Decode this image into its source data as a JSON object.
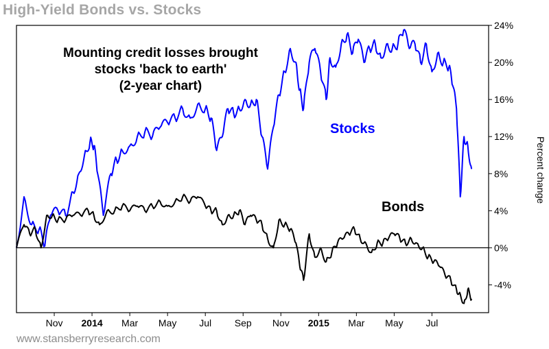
{
  "header": {
    "title": "High-Yield Bonds vs. Stocks"
  },
  "footer": {
    "source": "www.stansberryresearch.com"
  },
  "chart_data": {
    "type": "line",
    "title": "High-Yield Bonds vs. Stocks",
    "annotation_lines": [
      "Mounting credit losses brought",
      "stocks 'back to earth'",
      "(2-year chart)"
    ],
    "ylabel": "Percent change",
    "ylim": [
      -7,
      24
    ],
    "y_ticks": [
      24,
      20,
      16,
      12,
      8,
      4,
      0,
      -4
    ],
    "y_tick_labels": [
      "24%",
      "20%",
      "16%",
      "12%",
      "8%",
      "4%",
      "0%",
      "-4%"
    ],
    "x_ticks": [
      {
        "label": "Nov",
        "month": 2,
        "bold": false
      },
      {
        "label": "2014",
        "month": 4,
        "bold": true
      },
      {
        "label": "Mar",
        "month": 6,
        "bold": false
      },
      {
        "label": "May",
        "month": 8,
        "bold": false
      },
      {
        "label": "Jul",
        "month": 10,
        "bold": false
      },
      {
        "label": "Sep",
        "month": 12,
        "bold": false
      },
      {
        "label": "Nov",
        "month": 14,
        "bold": false
      },
      {
        "label": "2015",
        "month": 16,
        "bold": true
      },
      {
        "label": "Mar",
        "month": 18,
        "bold": false
      },
      {
        "label": "May",
        "month": 20,
        "bold": false
      },
      {
        "label": "Jul",
        "month": 22,
        "bold": false
      }
    ],
    "xlim": [
      0,
      25
    ],
    "grid": false,
    "reference_line": 0,
    "series": [
      {
        "name": "Stocks",
        "color": "#0000ff",
        "x": [
          0,
          0.4,
          0.8,
          1.2,
          1.5,
          1.8,
          2.2,
          2.6,
          3.0,
          3.3,
          3.6,
          3.9,
          4.1,
          4.3,
          4.6,
          5.0,
          5.3,
          5.6,
          6.0,
          6.4,
          6.8,
          7.2,
          7.6,
          8.0,
          8.4,
          8.8,
          9.2,
          9.6,
          10.0,
          10.3,
          10.6,
          10.9,
          11.2,
          11.5,
          11.8,
          12.1,
          12.4,
          12.7,
          13.0,
          13.3,
          13.6,
          13.9,
          14.2,
          14.5,
          14.8,
          15.0,
          15.2,
          15.5,
          15.8,
          16.1,
          16.4,
          16.6,
          16.9,
          17.2,
          17.5,
          17.8,
          18.1,
          18.4,
          18.7,
          19.0,
          19.3,
          19.6,
          19.9,
          20.2,
          20.5,
          20.8,
          21.1,
          21.4,
          21.7,
          22.0,
          22.3,
          22.6,
          22.9,
          23.1,
          23.3,
          23.5,
          23.7,
          23.9,
          24.1
        ],
        "values": [
          0,
          5.5,
          2.5,
          2,
          0.2,
          3.5,
          4,
          3.5,
          6,
          8,
          10,
          11.5,
          11,
          8,
          3.5,
          8,
          9.5,
          10.5,
          11,
          12,
          12.5,
          12,
          13,
          13.5,
          14,
          15,
          14,
          15.5,
          15,
          14,
          10.5,
          12,
          15,
          14.5,
          15,
          16,
          15.5,
          16,
          12,
          8.5,
          13,
          16.5,
          19,
          21.5,
          20,
          17,
          15,
          20,
          21.5,
          19,
          16,
          20.5,
          19.5,
          22,
          23,
          21,
          22.5,
          20,
          21.5,
          22,
          20.5,
          22,
          21.5,
          22,
          23.5,
          21.5,
          22,
          20,
          22,
          19,
          21,
          20,
          19.5,
          17.5,
          15,
          5.5,
          12,
          11,
          8.5
        ]
      },
      {
        "name": "Bonds",
        "color": "#000000",
        "x": [
          0,
          0.4,
          0.7,
          1.0,
          1.3,
          1.6,
          1.9,
          2.2,
          2.6,
          3.0,
          3.4,
          3.8,
          4.1,
          4.4,
          4.8,
          5.2,
          5.6,
          6.0,
          6.4,
          6.8,
          7.2,
          7.6,
          8.0,
          8.4,
          8.8,
          9.2,
          9.6,
          10.0,
          10.3,
          10.6,
          10.9,
          11.2,
          11.5,
          11.8,
          12.1,
          12.4,
          12.7,
          13.0,
          13.3,
          13.6,
          13.9,
          14.2,
          14.5,
          14.8,
          15.0,
          15.2,
          15.5,
          15.8,
          16.1,
          16.4,
          16.7,
          17.0,
          17.3,
          17.6,
          17.9,
          18.2,
          18.5,
          18.8,
          19.1,
          19.4,
          19.7,
          20.0,
          20.3,
          20.6,
          20.9,
          21.2,
          21.5,
          21.8,
          22.1,
          22.4,
          22.7,
          23.0,
          23.3,
          23.5,
          23.7,
          23.9,
          24.1
        ],
        "values": [
          0,
          2.5,
          1.5,
          2,
          0,
          3.5,
          3.5,
          3,
          3,
          3.5,
          3.5,
          4,
          3.5,
          2.5,
          4,
          4,
          4.5,
          4,
          4.5,
          4,
          4.5,
          5,
          4.5,
          5,
          5.5,
          5,
          5.5,
          4.5,
          4,
          4,
          2.5,
          3.5,
          3.5,
          4,
          2.5,
          3.5,
          3,
          2.5,
          1,
          0,
          3,
          2.5,
          2,
          0.5,
          -2,
          -3.5,
          1.5,
          -1,
          0,
          -1.5,
          -0.5,
          0.5,
          1,
          1.5,
          2,
          1,
          0.5,
          -0.5,
          0.5,
          0.5,
          1,
          1.5,
          1,
          0.5,
          1,
          0.5,
          0,
          -1,
          -1.5,
          -2,
          -3,
          -3.5,
          -4.5,
          -5,
          -6,
          -4.5,
          -5.5
        ]
      }
    ]
  }
}
